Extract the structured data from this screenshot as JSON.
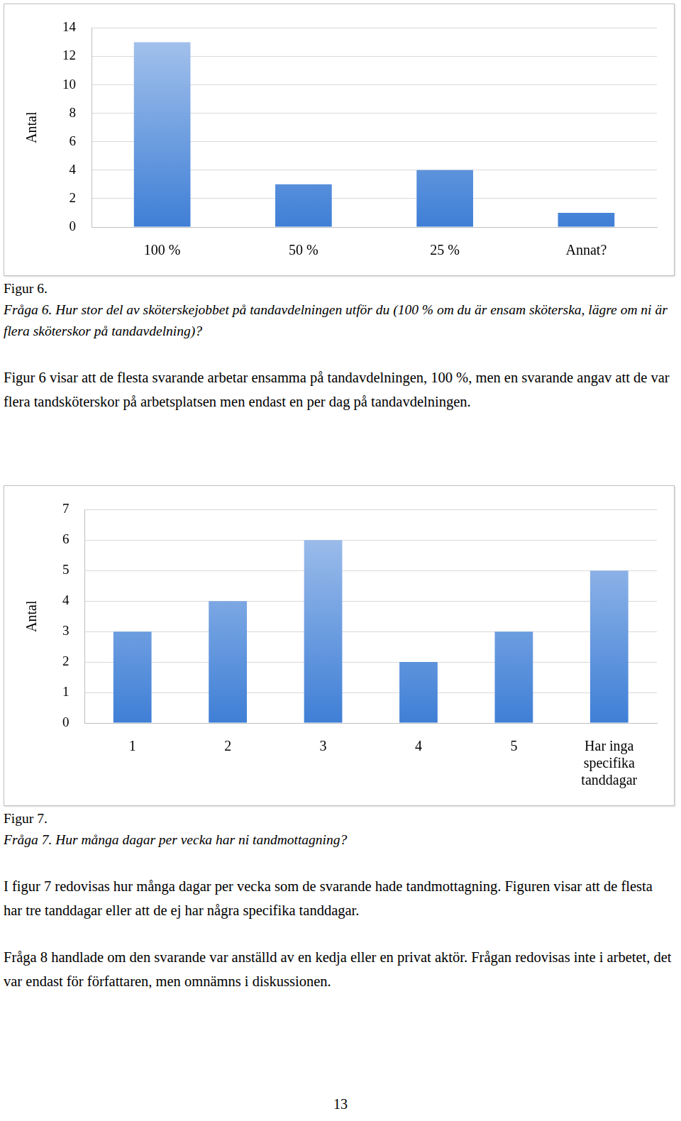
{
  "chart_data": [
    {
      "type": "bar",
      "categories": [
        "100 %",
        "50 %",
        "25 %",
        "Annat?"
      ],
      "values": [
        13,
        3,
        4,
        1
      ],
      "y_label": "Antal",
      "color": "#3f7fd6",
      "ylim": [
        0,
        14
      ],
      "yticks": [
        0,
        2,
        4,
        6,
        8,
        10,
        12,
        14
      ],
      "grid": true
    },
    {
      "type": "bar",
      "categories": [
        "1",
        "2",
        "3",
        "4",
        "5",
        "Har inga specifika tanddagar"
      ],
      "values": [
        3,
        4,
        6,
        2,
        3,
        5
      ],
      "y_label": "Antal",
      "color": "#3f7fd6",
      "ylim": [
        0,
        7
      ],
      "yticks": [
        0,
        1,
        2,
        3,
        4,
        5,
        6,
        7
      ],
      "grid": true
    }
  ],
  "text": {
    "figure_6": {
      "caption": "Figur 6.",
      "question": "Fråga 6. Hur stor del av sköterskejobbet på tandavdelningen utför du (100 % om du är ensam sköterska, lägre om ni är flera sköterskor på tandavdelning)?"
    },
    "paragraph_1": "Figur 6 visar att de flesta svarande arbetar ensamma på tandavdelningen, 100 %, men en svarande angav att de var flera tandsköterskor på arbetsplatsen men endast en per dag på tandavdelningen.",
    "figure_7": {
      "caption": "Figur 7.",
      "question": "Fråga 7. Hur många dagar per vecka har ni tandmottagning?"
    },
    "paragraph_2": "I figur 7 redovisas hur många dagar per vecka som de svarande hade tandmottagning. Figuren visar att de flesta har tre tanddagar eller att de ej har några specifika tanddagar.",
    "paragraph_3": "Fråga 8 handlade om den svarande var anställd av en kedja eller en privat aktör. Frågan redovisas inte i arbetet, det var endast för författaren, men omnämns i diskussionen.",
    "page_number": 13
  }
}
